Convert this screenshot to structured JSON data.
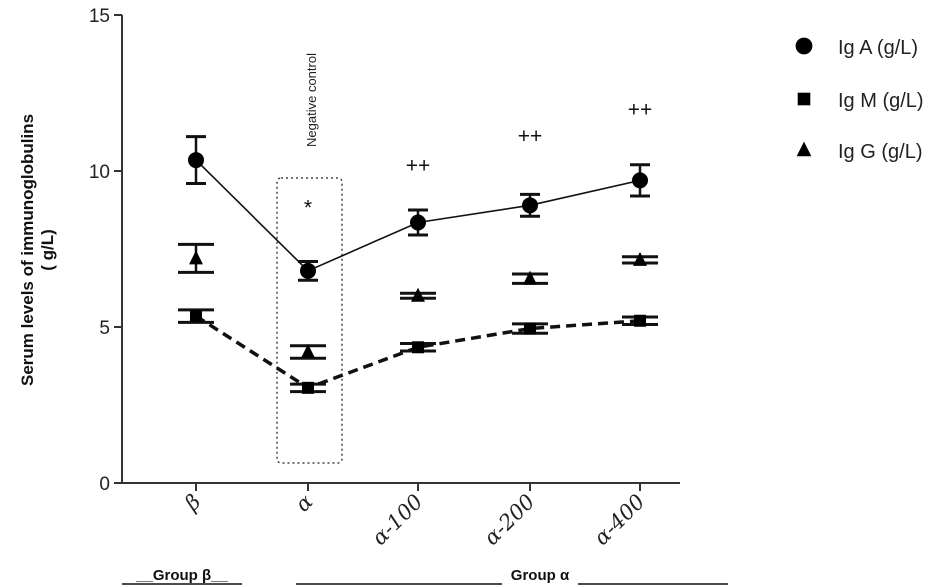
{
  "chart_data": {
    "type": "line",
    "categories": [
      "β",
      "α",
      "α-100",
      "α-200",
      "α-400"
    ],
    "ylabel_line1": "Serum levels of immunoglobulins",
    "ylabel_line2": "( g/L)",
    "ylim": [
      0,
      15
    ],
    "yticks": [
      "0",
      "5",
      "10",
      "15"
    ],
    "series": [
      {
        "name": "Ig A (g/L)",
        "marker": "circle",
        "line": "solid",
        "values": [
          10.35,
          6.8,
          8.35,
          8.9,
          9.7
        ],
        "err": [
          0.75,
          0.3,
          0.4,
          0.35,
          0.5
        ]
      },
      {
        "name": "Ig M (g/L)",
        "marker": "square",
        "line": "dashed",
        "values": [
          5.35,
          3.05,
          4.35,
          4.95,
          5.2
        ],
        "err": [
          0.2,
          0.12,
          0.12,
          0.15,
          0.12
        ]
      },
      {
        "name": "Ig G (g/L)",
        "marker": "triangle",
        "line": "none",
        "values": [
          7.2,
          4.2,
          6.0,
          6.55,
          7.15
        ],
        "err": [
          0.45,
          0.2,
          0.08,
          0.15,
          0.1
        ]
      }
    ],
    "annotations": [
      {
        "text": "*",
        "category": 1,
        "y": 8.6
      },
      {
        "text": "++",
        "category": 2,
        "y": 9.95
      },
      {
        "text": "++",
        "category": 3,
        "y": 10.9
      },
      {
        "text": "++",
        "category": 4,
        "y": 11.75
      }
    ],
    "negative_control_label": "Negative control",
    "groups": [
      {
        "label": "__Group β__"
      },
      {
        "label": "Group α"
      }
    ],
    "legend_position": "top-right"
  }
}
